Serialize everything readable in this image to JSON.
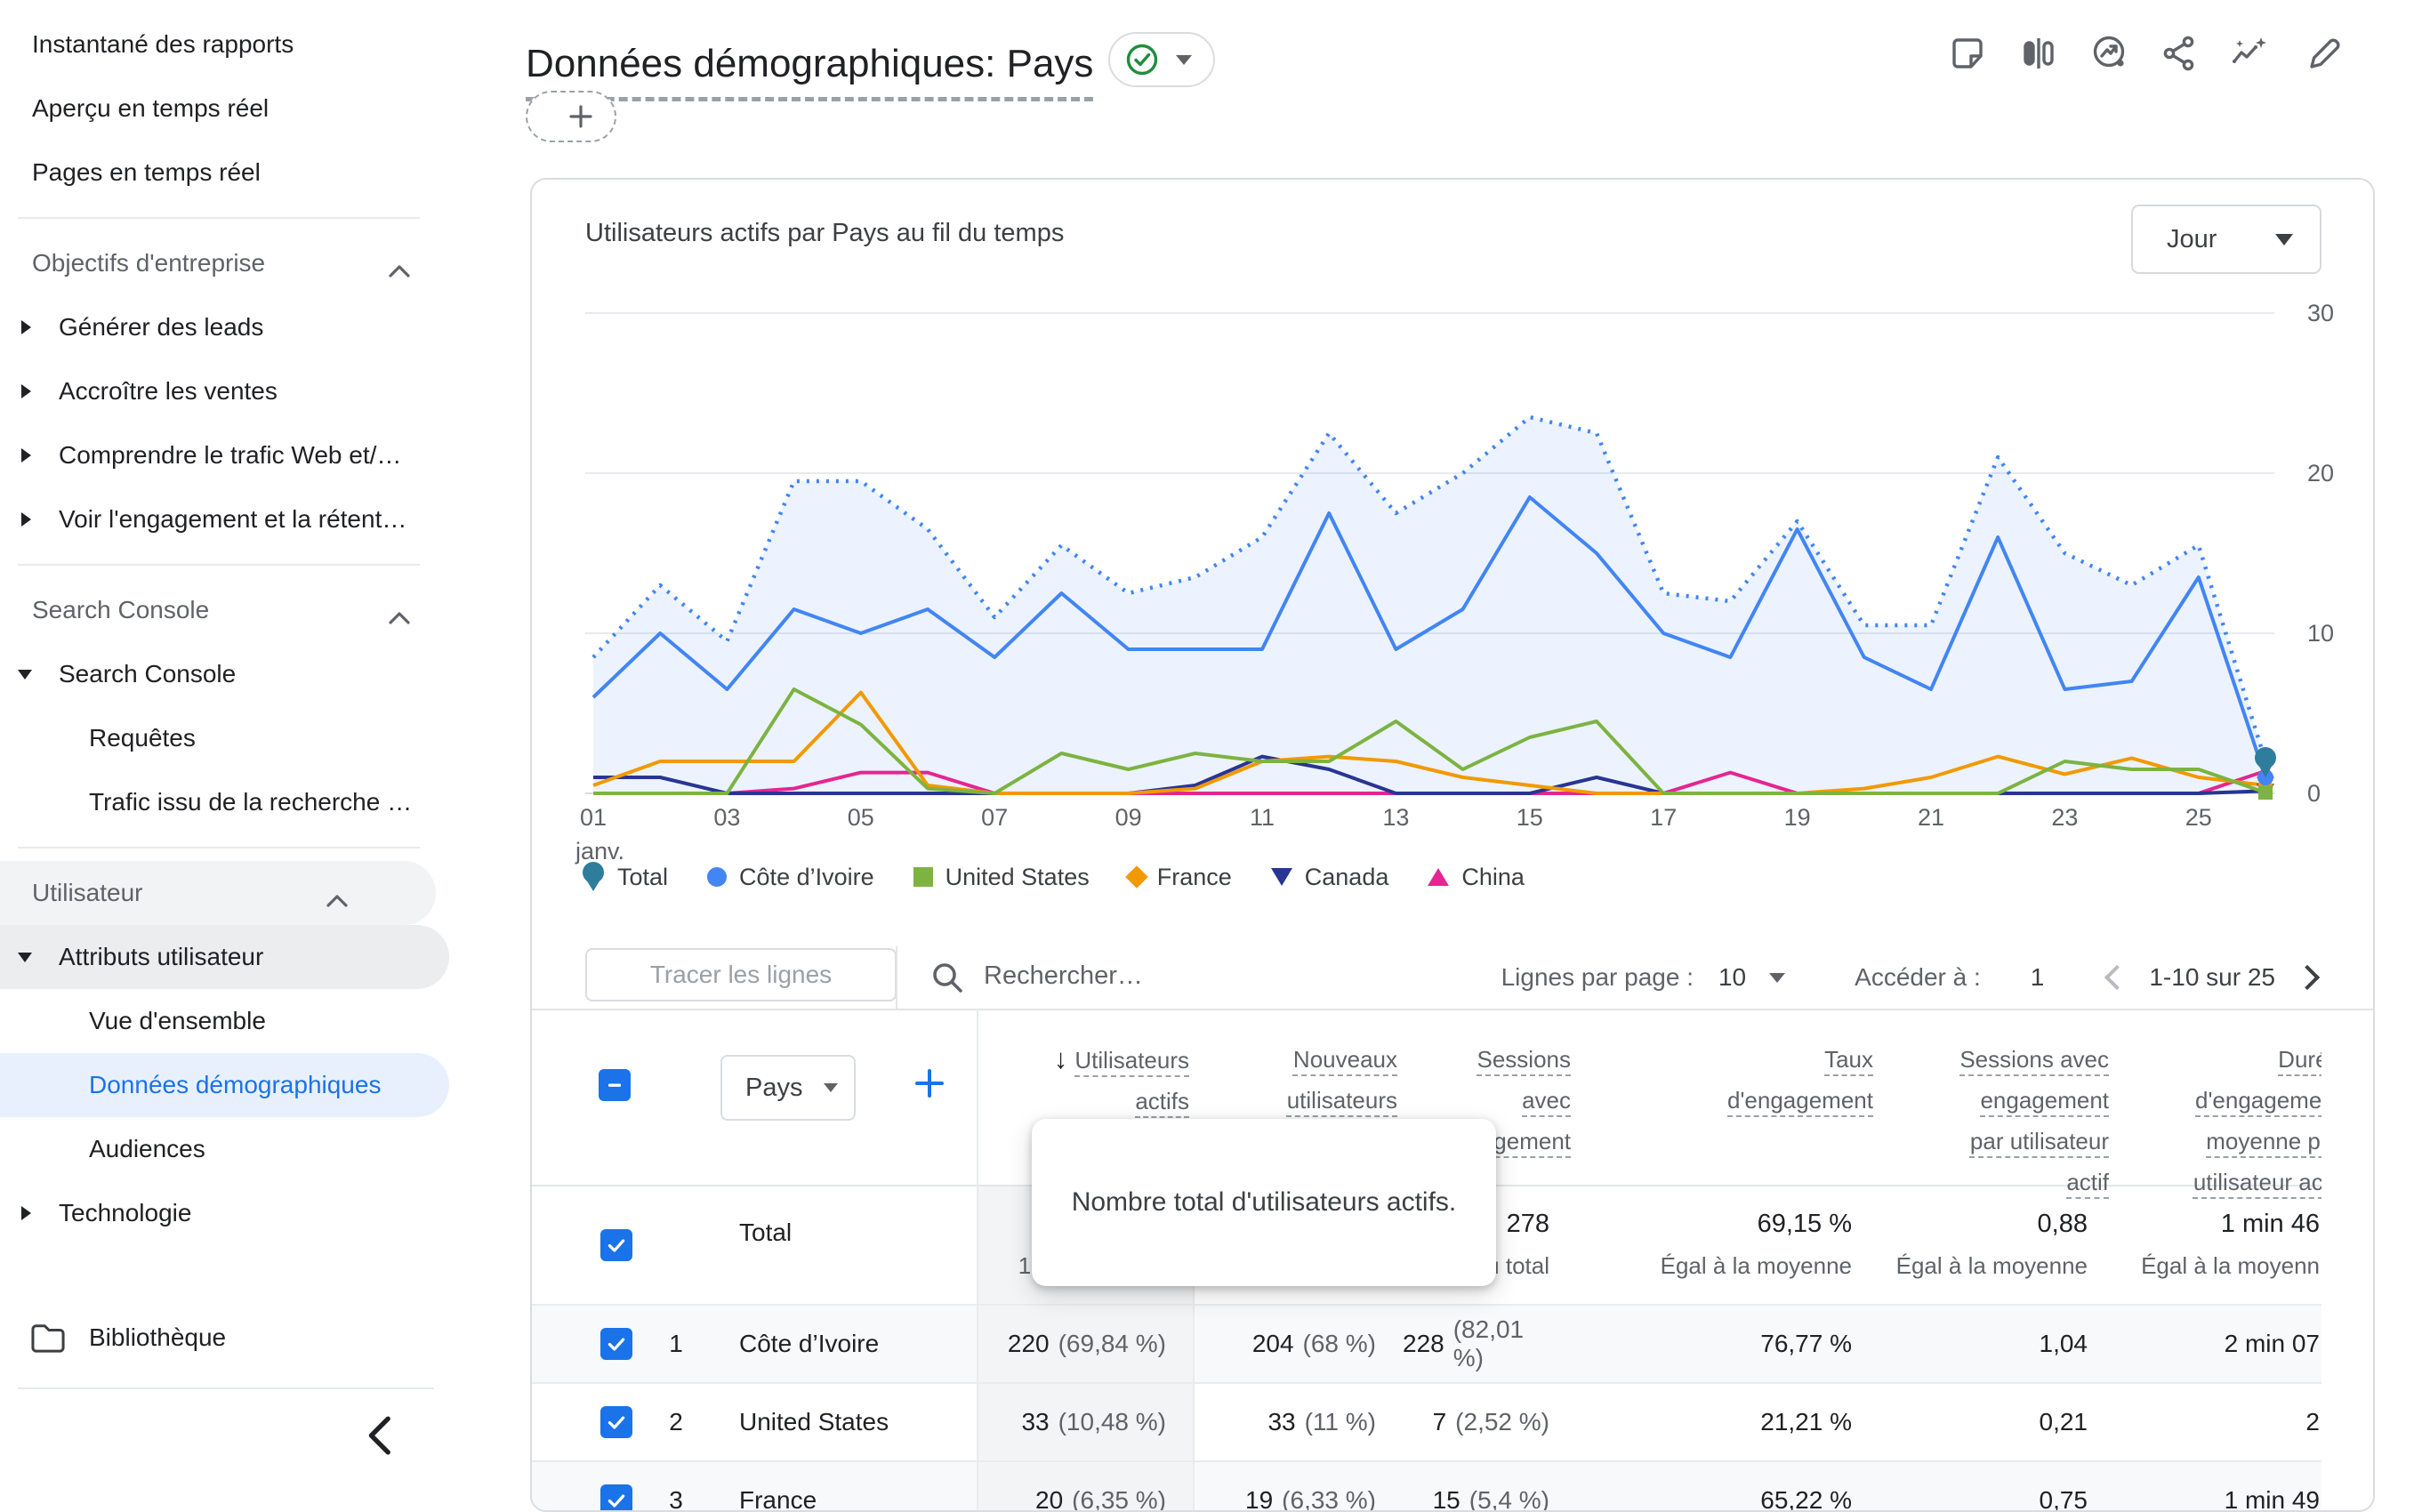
{
  "sidebar": {
    "groups": [
      {
        "items": [
          {
            "label": "Instantané des rapports"
          },
          {
            "label": "Aperçu en temps réel"
          },
          {
            "label": "Pages en temps réel"
          }
        ]
      },
      {
        "header": "Objectifs d'entreprise",
        "items": [
          {
            "label": "Générer des leads",
            "arrow": "right"
          },
          {
            "label": "Accroître les ventes",
            "arrow": "right"
          },
          {
            "label": "Comprendre le trafic Web et/…",
            "arrow": "right"
          },
          {
            "label": "Voir l'engagement et la rétent…",
            "arrow": "right"
          }
        ]
      },
      {
        "header": "Search Console",
        "items": [
          {
            "label": "Search Console",
            "arrow": "down"
          },
          {
            "label": "Requêtes",
            "indent": 2
          },
          {
            "label": "Trafic issu de la recherche …",
            "indent": 2
          }
        ]
      },
      {
        "header": "Utilisateur",
        "header_pill": true,
        "items": [
          {
            "label": "Attributs utilisateur",
            "arrow": "down",
            "pill": "gray"
          },
          {
            "label": "Vue d'ensemble",
            "indent": 2
          },
          {
            "label": "Données démographiques",
            "indent": 2,
            "active": true
          },
          {
            "label": "Audiences",
            "indent": 2
          },
          {
            "label": "Technologie",
            "arrow": "right"
          }
        ]
      }
    ],
    "library_label": "Bibliothèque"
  },
  "header": {
    "title": "Données démographiques: Pays",
    "filter_button": "Ajouter un filtre",
    "icon_names": [
      "note-icon",
      "compare-icon",
      "insights-icon",
      "share-icon",
      "magic-trend-icon",
      "edit-icon"
    ],
    "status_color": "#1e8e3e"
  },
  "chart": {
    "title": "Utilisateurs actifs par Pays au fil du temps",
    "granularity": "Jour"
  },
  "chart_data": {
    "type": "line",
    "title": "Utilisateurs actifs par Pays au fil du temps",
    "xlabel": "janv.",
    "ylabel": "Utilisateurs actifs",
    "ylim": [
      0,
      30
    ],
    "yticks": [
      0,
      10,
      20,
      30
    ],
    "x": [
      1,
      2,
      3,
      4,
      5,
      6,
      7,
      8,
      9,
      10,
      11,
      12,
      13,
      14,
      15,
      16,
      17,
      18,
      19,
      20,
      21,
      22,
      23,
      24,
      25,
      26
    ],
    "x_tick_days": [
      1,
      3,
      5,
      7,
      9,
      11,
      13,
      15,
      17,
      19,
      21,
      23,
      25
    ],
    "x_tick_labels": [
      "01",
      "03",
      "05",
      "07",
      "09",
      "11",
      "13",
      "15",
      "17",
      "19",
      "21",
      "23",
      "25"
    ],
    "x_first_sublabel": "janv.",
    "legend_position": "bottom",
    "series": [
      {
        "name": "Total",
        "marker": "pin",
        "color": "#2e7d9c",
        "line_color": "#4285f4",
        "style": "dotted",
        "fill": "rgba(66,133,244,0.10)",
        "values": [
          8.5,
          13,
          9.5,
          19.5,
          19.5,
          16.5,
          11,
          15.5,
          12.5,
          13.5,
          16,
          22.5,
          17.5,
          20,
          23.5,
          22.5,
          12.5,
          12,
          17,
          10.5,
          10.5,
          21,
          15,
          13,
          15.5,
          2
        ]
      },
      {
        "name": "Côte d’Ivoire",
        "marker": "circle",
        "color": "#4285f4",
        "style": "solid",
        "values": [
          6,
          10,
          6.5,
          11.5,
          10,
          11.5,
          8.5,
          12.5,
          9,
          9,
          9,
          17.5,
          9,
          11.5,
          18.5,
          15,
          10,
          8.5,
          16.5,
          8.5,
          6.5,
          16,
          6.5,
          7,
          13.5,
          1
        ]
      },
      {
        "name": "United States",
        "marker": "square",
        "color": "#7cb342",
        "style": "solid",
        "values": [
          0,
          0,
          0,
          6.5,
          4.3,
          0.3,
          0,
          2.5,
          1.5,
          2.5,
          2,
          2,
          4.5,
          1.5,
          3.5,
          4.5,
          0,
          0,
          0,
          0,
          0,
          0,
          2,
          1.5,
          1.5,
          0.05
        ]
      },
      {
        "name": "France",
        "marker": "diamond",
        "color": "#f29900",
        "style": "solid",
        "values": [
          0.5,
          2,
          2,
          2,
          6.3,
          0.5,
          0,
          0,
          0,
          0.3,
          2,
          2.3,
          2,
          1,
          0.5,
          0,
          0,
          0,
          0,
          0.3,
          1,
          2.3,
          1.2,
          2.2,
          1,
          0.5
        ]
      },
      {
        "name": "Canada",
        "marker": "triangle-down",
        "color": "#283593",
        "style": "solid",
        "values": [
          1,
          1,
          0,
          0,
          0,
          0,
          0,
          0,
          0,
          0.5,
          2.3,
          1.5,
          0,
          0,
          0,
          1,
          0,
          0,
          0,
          0,
          0,
          0,
          0,
          0,
          0,
          0.15
        ]
      },
      {
        "name": "China",
        "marker": "triangle-up",
        "color": "#e52592",
        "style": "solid",
        "values": [
          0,
          0,
          0,
          0.3,
          1.3,
          1.3,
          0,
          0,
          0,
          0,
          0,
          0,
          0,
          0,
          0,
          0,
          0,
          1.3,
          0,
          0,
          0,
          0,
          0,
          0,
          0,
          1.4
        ]
      }
    ]
  },
  "table": {
    "controls": {
      "plot_button": "Tracer les lignes",
      "search_placeholder": "Rechercher…",
      "rows_per_page_label": "Lignes par page :",
      "rows_per_page": "10",
      "goto_label": "Accéder à :",
      "goto_page": "1",
      "range": "1-10 sur 25"
    },
    "dimension": "Pays",
    "columns": [
      {
        "lines": [
          "Utilisateurs",
          "actifs"
        ],
        "sorted": true
      },
      {
        "lines": [
          "Nouveaux",
          "utilisateurs"
        ]
      },
      {
        "lines": [
          "Sessions",
          "avec",
          "engagement"
        ]
      },
      {
        "lines": [
          "Taux",
          "d'engagement"
        ]
      },
      {
        "lines": [
          "Sessions avec",
          "engagement",
          "par utilisateur",
          "actif"
        ]
      },
      {
        "lines": [
          "Durée",
          "d'engagement",
          "moyenne par",
          "utilisateur actif"
        ]
      }
    ],
    "total_label": "Total",
    "total": {
      "cells": [
        {
          "v": "",
          "sub": "100 % du total"
        },
        {
          "v": "",
          "sub": "100 % du total"
        },
        {
          "v": "278",
          "sub": "100 % du total"
        },
        {
          "v": "69,15 %",
          "sub": "Égal à la moyenne"
        },
        {
          "v": "0,88",
          "sub": "Égal à la moyenne"
        },
        {
          "v": "1 min 46",
          "sub": "Égal à la moyenn"
        }
      ]
    },
    "rows": [
      {
        "rank": "1",
        "name": "Côte d’Ivoire",
        "cells": [
          {
            "v": "220",
            "p": "(69,84 %)"
          },
          {
            "v": "204",
            "p": "(68 %)"
          },
          {
            "v": "228",
            "p": "(82,01 %)"
          },
          {
            "v": "76,77 %"
          },
          {
            "v": "1,04"
          },
          {
            "v": "2 min 07"
          }
        ]
      },
      {
        "rank": "2",
        "name": "United States",
        "cells": [
          {
            "v": "33",
            "p": "(10,48 %)"
          },
          {
            "v": "33",
            "p": "(11 %)"
          },
          {
            "v": "7",
            "p": "(2,52 %)"
          },
          {
            "v": "21,21 %"
          },
          {
            "v": "0,21"
          },
          {
            "v": "2"
          }
        ]
      },
      {
        "rank": "3",
        "name": "France",
        "cells": [
          {
            "v": "20",
            "p": "(6,35 %)"
          },
          {
            "v": "19",
            "p": "(6,33 %)"
          },
          {
            "v": "15",
            "p": "(5,4 %)"
          },
          {
            "v": "65,22 %"
          },
          {
            "v": "0,75"
          },
          {
            "v": "1 min 49"
          }
        ]
      }
    ]
  },
  "tooltip": {
    "text": "Nombre total d'utilisateurs actifs."
  }
}
